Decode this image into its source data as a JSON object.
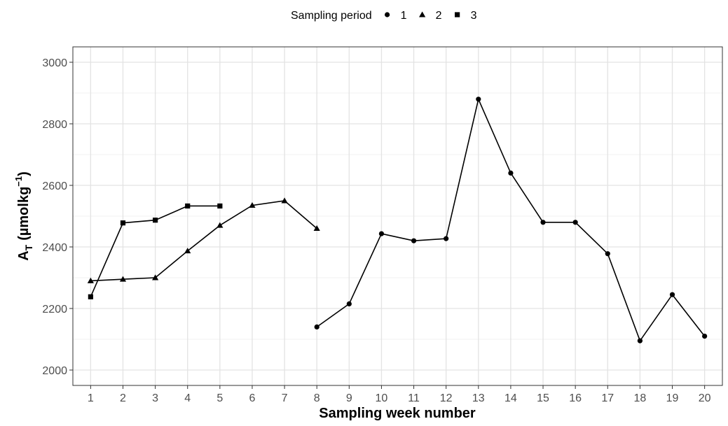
{
  "chart_data": {
    "type": "line",
    "legend": {
      "title": "Sampling period",
      "position": "top",
      "entries": [
        {
          "label": "1",
          "shape": "circle"
        },
        {
          "label": "2",
          "shape": "triangle"
        },
        {
          "label": "3",
          "shape": "square"
        }
      ]
    },
    "xlabel": "Sampling week number",
    "ylabel": "A",
    "ylabel_subscript": "T",
    "ylabel_units": "(µmolkg",
    "ylabel_units_superscript": "−1",
    "ylabel_units_close": ")",
    "x_ticks": [
      1,
      2,
      3,
      4,
      5,
      6,
      7,
      8,
      9,
      10,
      11,
      12,
      13,
      14,
      15,
      16,
      17,
      18,
      19,
      20
    ],
    "y_ticks": [
      2000,
      2200,
      2400,
      2600,
      2800,
      3000
    ],
    "xlim": [
      0.45,
      20.55
    ],
    "ylim": [
      1950,
      3050
    ],
    "grid": true,
    "series": [
      {
        "name": "1",
        "shape": "circle",
        "x": [
          8,
          9,
          10,
          11,
          12,
          13,
          14,
          15,
          16,
          17,
          18,
          19,
          20
        ],
        "y": [
          2140,
          2215,
          2443,
          2420,
          2427,
          2880,
          2640,
          2480,
          2480,
          2378,
          2095,
          2245,
          2110
        ]
      },
      {
        "name": "2",
        "shape": "triangle",
        "x": [
          1,
          2,
          3,
          4,
          5,
          6,
          7,
          8
        ],
        "y": [
          2290,
          2295,
          2300,
          2387,
          2470,
          2535,
          2550,
          2460
        ]
      },
      {
        "name": "3",
        "shape": "square",
        "x": [
          1,
          2,
          3,
          4,
          5
        ],
        "y": [
          2238,
          2478,
          2487,
          2533,
          2533
        ]
      }
    ]
  }
}
